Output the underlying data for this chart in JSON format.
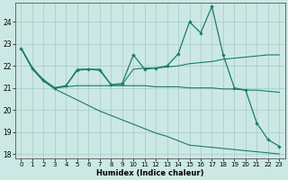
{
  "xlabel": "Humidex (Indice chaleur)",
  "bg_color": "#cce8e4",
  "line_color": "#1a7a6e",
  "grid_color": "#aacfcb",
  "xlim": [
    -0.5,
    23.5
  ],
  "ylim": [
    17.8,
    24.85
  ],
  "yticks": [
    18,
    19,
    20,
    21,
    22,
    23,
    24
  ],
  "xticks": [
    0,
    1,
    2,
    3,
    4,
    5,
    6,
    7,
    8,
    9,
    10,
    11,
    12,
    13,
    14,
    15,
    16,
    17,
    18,
    19,
    20,
    21,
    22,
    23
  ],
  "line1_y": [
    22.8,
    21.9,
    21.35,
    21.0,
    21.1,
    21.8,
    21.85,
    21.8,
    21.15,
    21.2,
    22.5,
    21.85,
    21.9,
    22.0,
    22.55,
    24.0,
    23.5,
    24.7,
    22.5,
    21.0,
    20.9,
    19.4,
    18.65,
    18.35
  ],
  "line2_y": [
    22.8,
    21.9,
    21.35,
    21.0,
    21.1,
    21.85,
    21.85,
    21.85,
    21.15,
    21.15,
    21.85,
    21.9,
    21.9,
    21.95,
    22.0,
    22.1,
    22.15,
    22.2,
    22.3,
    22.35,
    22.4,
    22.45,
    22.5,
    22.5
  ],
  "line3_y": [
    22.8,
    21.9,
    21.35,
    21.0,
    21.05,
    21.1,
    21.1,
    21.1,
    21.1,
    21.1,
    21.1,
    21.1,
    21.05,
    21.05,
    21.05,
    21.0,
    21.0,
    21.0,
    20.95,
    20.95,
    20.9,
    20.9,
    20.85,
    20.8
  ],
  "line4_y": [
    22.8,
    21.85,
    21.3,
    20.95,
    20.7,
    20.45,
    20.2,
    19.95,
    19.75,
    19.55,
    19.35,
    19.15,
    18.95,
    18.8,
    18.6,
    18.4,
    18.35,
    18.3,
    18.25,
    18.2,
    18.15,
    18.1,
    18.05,
    18.0
  ]
}
